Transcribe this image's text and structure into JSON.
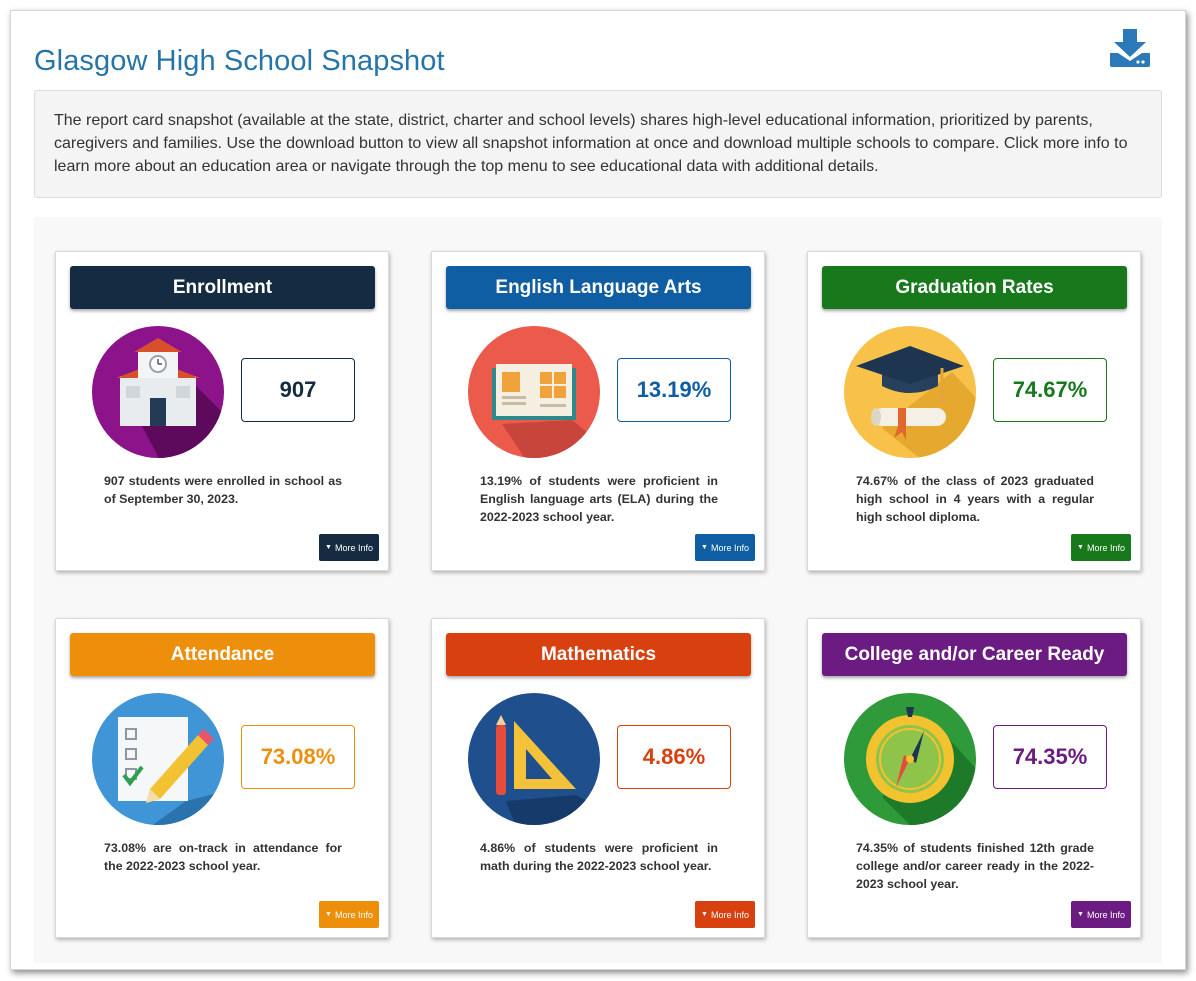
{
  "page": {
    "title": "Glasgow High School Snapshot",
    "download_icon": "download-icon",
    "intro": "The report card snapshot (available at the state, district, charter and school levels) shares high-level educational information, prioritized by parents, caregivers and families. Use the download button to view all snapshot information at once and download multiple schools to compare. Click more info to learn more about an education area or navigate through the top menu to see educational data with additional details."
  },
  "cards": [
    {
      "title": "Enrollment",
      "value": "907",
      "description": "907 students were enrolled in school as of September 30, 2023.",
      "button": "More Info",
      "color": "#142b41",
      "icon": "school-building-icon"
    },
    {
      "title": "English Language Arts",
      "value": "13.19%",
      "description": "13.19% of students were proficient in English language arts (ELA) during the 2022-2023 school year.",
      "button": "More Info",
      "color": "#0f5da3",
      "icon": "open-book-icon"
    },
    {
      "title": "Graduation Rates",
      "value": "74.67%",
      "description": "74.67% of the class of 2023 graduated high school in 4 years with a regular high school diploma.",
      "button": "More Info",
      "color": "#18781c",
      "icon": "graduation-cap-icon"
    },
    {
      "title": "Attendance",
      "value": "73.08%",
      "description": "73.08% are on-track in attendance for the 2022-2023 school year.",
      "button": "More Info",
      "color": "#ee8f0c",
      "icon": "checklist-pencil-icon"
    },
    {
      "title": "Mathematics",
      "value": "4.86%",
      "description": "4.86% of students were proficient in math during the 2022-2023 school year.",
      "button": "More Info",
      "color": "#d9400f",
      "icon": "ruler-triangle-icon"
    },
    {
      "title": "College and/or Career Ready",
      "value": "74.35%",
      "description": "74.35% of students finished 12th grade college and/or career ready in the 2022-2023 school year.",
      "button": "More Info",
      "color": "#6c1b82",
      "icon": "compass-icon"
    }
  ]
}
